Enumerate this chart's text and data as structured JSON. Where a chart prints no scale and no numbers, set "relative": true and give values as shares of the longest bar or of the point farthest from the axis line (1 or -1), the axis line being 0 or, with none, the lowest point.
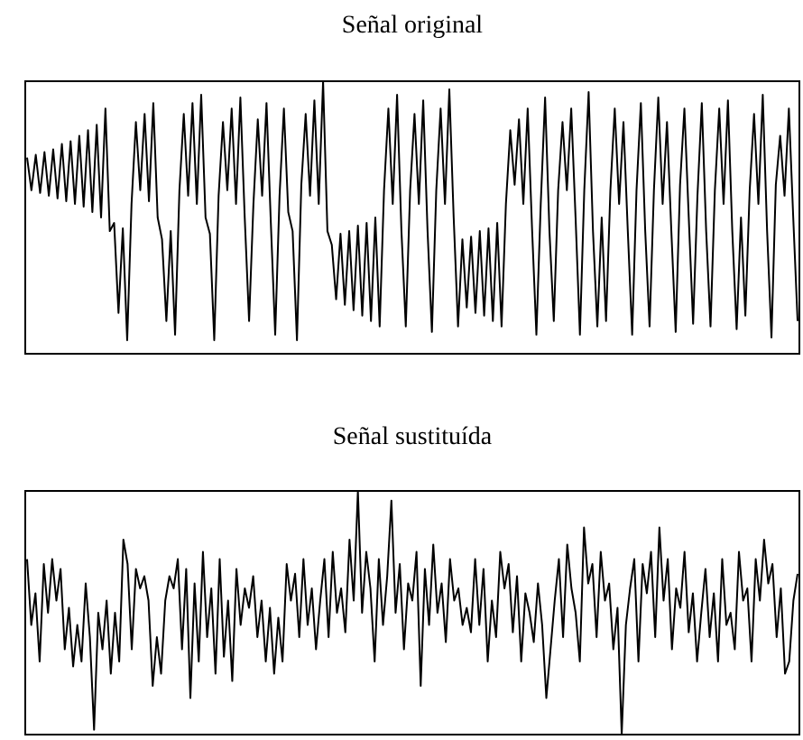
{
  "chart_data": [
    {
      "type": "line",
      "title": "Señal original",
      "relative": true,
      "categories": [
        null,
        null,
        null,
        null,
        null,
        null,
        null,
        null,
        null,
        null,
        null,
        null,
        null,
        null,
        null,
        null,
        null,
        null,
        null,
        null,
        null,
        null,
        null,
        null,
        null,
        null,
        null,
        null,
        null,
        null,
        null,
        null,
        null,
        null,
        null,
        null,
        null,
        null,
        null,
        null,
        null,
        null,
        null,
        null,
        null,
        null,
        null,
        null,
        null,
        null,
        null,
        null,
        null,
        null,
        null,
        null,
        null,
        null,
        null,
        null,
        null,
        null,
        null,
        null,
        null,
        null,
        null,
        null,
        null,
        null,
        null,
        null,
        null,
        null,
        null,
        null,
        null,
        null,
        null,
        null,
        null,
        null,
        null,
        null,
        null,
        null,
        null,
        null,
        null,
        null,
        null,
        null,
        null,
        null,
        null,
        null,
        null,
        null,
        null,
        null,
        null,
        null,
        null,
        null,
        null,
        null,
        null,
        null,
        null,
        null,
        null,
        null,
        null,
        null,
        null,
        null,
        null,
        null,
        null,
        null,
        null,
        null,
        null,
        null,
        null,
        null,
        null,
        null,
        null,
        null,
        null,
        null,
        null,
        null,
        null,
        null,
        null,
        null,
        null,
        null,
        null,
        null,
        null,
        null,
        null,
        null,
        null,
        null,
        null,
        null,
        null,
        null,
        null,
        null,
        null,
        null,
        null,
        null,
        null,
        null,
        null,
        null,
        null,
        null,
        null,
        null,
        null,
        null,
        null,
        null,
        null,
        null,
        null,
        null,
        null,
        null,
        null,
        null
      ],
      "series": [
        {
          "color": "#000000",
          "values": [
            0.72,
            0.6,
            0.73,
            0.59,
            0.74,
            0.58,
            0.75,
            0.57,
            0.77,
            0.56,
            0.78,
            0.55,
            0.8,
            0.54,
            0.82,
            0.52,
            0.84,
            0.5,
            0.9,
            0.45,
            0.48,
            0.15,
            0.46,
            0.05,
            0.55,
            0.85,
            0.6,
            0.88,
            0.56,
            0.92,
            0.5,
            0.42,
            0.12,
            0.45,
            0.07,
            0.6,
            0.88,
            0.58,
            0.92,
            0.55,
            0.95,
            0.5,
            0.44,
            0.05,
            0.58,
            0.85,
            0.6,
            0.9,
            0.55,
            0.94,
            0.5,
            0.12,
            0.55,
            0.86,
            0.58,
            0.92,
            0.48,
            0.07,
            0.58,
            0.9,
            0.52,
            0.45,
            0.05,
            0.62,
            0.88,
            0.58,
            0.93,
            0.55,
            1.0,
            0.45,
            0.4,
            0.2,
            0.44,
            0.18,
            0.45,
            0.16,
            0.47,
            0.14,
            0.48,
            0.12,
            0.5,
            0.1,
            0.6,
            0.9,
            0.55,
            0.95,
            0.45,
            0.1,
            0.6,
            0.88,
            0.55,
            0.93,
            0.45,
            0.08,
            0.6,
            0.9,
            0.55,
            0.97,
            0.5,
            0.1,
            0.42,
            0.17,
            0.43,
            0.15,
            0.45,
            0.14,
            0.46,
            0.12,
            0.48,
            0.1,
            0.55,
            0.82,
            0.62,
            0.86,
            0.55,
            0.9,
            0.46,
            0.07,
            0.55,
            0.94,
            0.45,
            0.12,
            0.6,
            0.85,
            0.6,
            0.9,
            0.5,
            0.07,
            0.6,
            0.96,
            0.45,
            0.1,
            0.5,
            0.12,
            0.6,
            0.9,
            0.55,
            0.85,
            0.45,
            0.07,
            0.6,
            0.92,
            0.45,
            0.1,
            0.6,
            0.94,
            0.55,
            0.85,
            0.45,
            0.08,
            0.62,
            0.9,
            0.5,
            0.11,
            0.58,
            0.92,
            0.45,
            0.1,
            0.6,
            0.9,
            0.55,
            0.93,
            0.45,
            0.09,
            0.5,
            0.14,
            0.6,
            0.88,
            0.55,
            0.95,
            0.45,
            0.06,
            0.62,
            0.8,
            0.58,
            0.9,
            0.5,
            0.12
          ]
        }
      ]
    },
    {
      "type": "line",
      "title": "Señal sustituída",
      "relative": true,
      "categories": [
        null,
        null,
        null,
        null,
        null,
        null,
        null,
        null,
        null,
        null,
        null,
        null,
        null,
        null,
        null,
        null,
        null,
        null,
        null,
        null,
        null,
        null,
        null,
        null,
        null,
        null,
        null,
        null,
        null,
        null,
        null,
        null,
        null,
        null,
        null,
        null,
        null,
        null,
        null,
        null,
        null,
        null,
        null,
        null,
        null,
        null,
        null,
        null,
        null,
        null,
        null,
        null,
        null,
        null,
        null,
        null,
        null,
        null,
        null,
        null,
        null,
        null,
        null,
        null,
        null,
        null,
        null,
        null,
        null,
        null,
        null,
        null,
        null,
        null,
        null,
        null,
        null,
        null,
        null,
        null,
        null,
        null,
        null,
        null,
        null,
        null,
        null,
        null,
        null,
        null,
        null,
        null,
        null,
        null,
        null,
        null,
        null,
        null,
        null,
        null,
        null,
        null,
        null,
        null,
        null,
        null,
        null,
        null,
        null,
        null,
        null,
        null,
        null,
        null,
        null,
        null,
        null,
        null,
        null,
        null,
        null,
        null,
        null,
        null,
        null,
        null,
        null,
        null,
        null,
        null,
        null,
        null,
        null,
        null,
        null,
        null,
        null,
        null,
        null,
        null,
        null,
        null,
        null,
        null,
        null,
        null,
        null,
        null,
        null,
        null,
        null,
        null,
        null,
        null,
        null,
        null,
        null,
        null,
        null,
        null,
        null,
        null,
        null,
        null,
        null,
        null,
        null,
        null,
        null,
        null,
        null,
        null,
        null,
        null,
        null,
        null,
        null,
        null,
        null,
        null,
        null,
        null,
        null,
        null,
        null
      ],
      "series": [
        {
          "color": "#000000",
          "values": [
            0.72,
            0.45,
            0.58,
            0.3,
            0.7,
            0.5,
            0.72,
            0.55,
            0.68,
            0.35,
            0.52,
            0.28,
            0.45,
            0.3,
            0.62,
            0.4,
            0.02,
            0.5,
            0.35,
            0.55,
            0.25,
            0.5,
            0.3,
            0.8,
            0.7,
            0.35,
            0.68,
            0.6,
            0.65,
            0.55,
            0.2,
            0.4,
            0.25,
            0.55,
            0.65,
            0.6,
            0.72,
            0.35,
            0.68,
            0.15,
            0.62,
            0.3,
            0.75,
            0.4,
            0.6,
            0.25,
            0.72,
            0.32,
            0.55,
            0.22,
            0.68,
            0.45,
            0.6,
            0.52,
            0.65,
            0.4,
            0.55,
            0.3,
            0.52,
            0.25,
            0.48,
            0.3,
            0.7,
            0.55,
            0.66,
            0.4,
            0.72,
            0.45,
            0.6,
            0.35,
            0.55,
            0.72,
            0.4,
            0.75,
            0.5,
            0.6,
            0.42,
            0.8,
            0.55,
            1.0,
            0.5,
            0.75,
            0.6,
            0.3,
            0.72,
            0.45,
            0.65,
            0.96,
            0.5,
            0.7,
            0.35,
            0.62,
            0.55,
            0.75,
            0.2,
            0.68,
            0.45,
            0.78,
            0.5,
            0.62,
            0.38,
            0.72,
            0.55,
            0.6,
            0.45,
            0.52,
            0.42,
            0.72,
            0.45,
            0.68,
            0.3,
            0.55,
            0.4,
            0.75,
            0.6,
            0.7,
            0.42,
            0.65,
            0.3,
            0.58,
            0.5,
            0.38,
            0.62,
            0.45,
            0.15,
            0.35,
            0.55,
            0.72,
            0.4,
            0.78,
            0.6,
            0.5,
            0.3,
            0.85,
            0.62,
            0.7,
            0.4,
            0.75,
            0.55,
            0.62,
            0.35,
            0.52,
            0.0,
            0.45,
            0.6,
            0.72,
            0.3,
            0.7,
            0.58,
            0.75,
            0.4,
            0.85,
            0.55,
            0.72,
            0.35,
            0.6,
            0.52,
            0.75,
            0.42,
            0.58,
            0.3,
            0.5,
            0.68,
            0.4,
            0.58,
            0.3,
            0.72,
            0.45,
            0.5,
            0.35,
            0.75,
            0.55,
            0.6,
            0.3,
            0.72,
            0.55,
            0.8,
            0.62,
            0.7,
            0.4,
            0.6,
            0.25,
            0.3,
            0.55,
            0.66
          ]
        }
      ]
    }
  ]
}
